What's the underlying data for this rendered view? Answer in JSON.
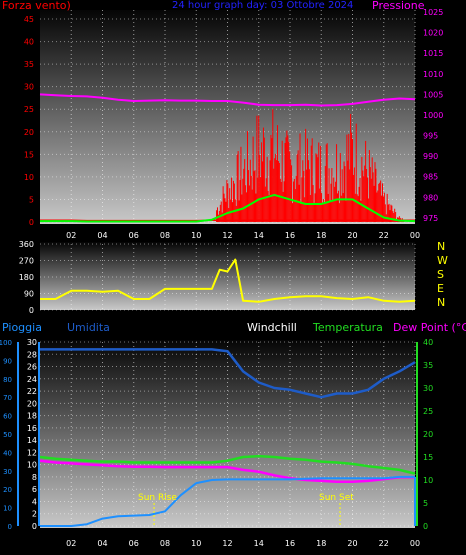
{
  "colors": {
    "wind": "#ff0000",
    "gust": "#00ff00",
    "pressure": "#ff00ff",
    "direction": "#ffff00",
    "humidity": "#1e5cc8",
    "temperature": "#22dd22",
    "dewpoint": "#ff00ff",
    "windchill": "#ffffff",
    "rain": "#1e90ff"
  },
  "chart_data": [
    {
      "type": "line",
      "title": "24 hour graph day: 03 Ottobre 2024",
      "left_label": "Forza vento)",
      "right_label": "Pressione",
      "x_ticks": [
        "02",
        "04",
        "06",
        "08",
        "10",
        "12",
        "14",
        "16",
        "18",
        "20",
        "22",
        "00"
      ],
      "x": [
        0,
        1,
        2,
        3,
        4,
        5,
        6,
        7,
        8,
        9,
        10,
        11,
        12,
        13,
        14,
        15,
        16,
        17,
        18,
        19,
        20,
        21,
        22,
        23,
        24
      ],
      "left_ticks": [
        "0",
        "5",
        "10",
        "15",
        "20",
        "25",
        "30",
        "35",
        "40",
        "45"
      ],
      "left_ylim": [
        0,
        47
      ],
      "right_ticks": [
        "975",
        "980",
        "985",
        "990",
        "995",
        "1000",
        "1005",
        "1010",
        "1015",
        "1020",
        "1025"
      ],
      "right_ylim": [
        974,
        1025.5
      ],
      "series": [
        {
          "name": "Pressione",
          "color_key": "pressure",
          "values": [
            1005.0,
            1004.8,
            1004.6,
            1004.5,
            1004.2,
            1003.7,
            1003.4,
            1003.5,
            1003.6,
            1003.5,
            1003.5,
            1003.4,
            1003.4,
            1003.0,
            1002.5,
            1002.4,
            1002.4,
            1002.5,
            1002.3,
            1002.4,
            1002.7,
            1003.2,
            1003.7,
            1004.0,
            1003.8
          ]
        },
        {
          "name": "Vento",
          "color_key": "wind",
          "values": [
            0.4,
            0.4,
            0.4,
            0.3,
            0.3,
            0.3,
            0.3,
            0.3,
            0.3,
            0.3,
            0.3,
            1,
            9,
            14,
            20,
            20,
            15,
            16,
            15,
            16,
            20,
            14,
            6,
            1,
            0.5
          ]
        },
        {
          "name": "Raffica",
          "color_key": "gust",
          "values": [
            0.2,
            0.2,
            0.2,
            0.1,
            0.1,
            0.1,
            0.1,
            0.1,
            0.1,
            0.1,
            0.1,
            0.5,
            2,
            3,
            5,
            6,
            5,
            4,
            4,
            5,
            5,
            3,
            1,
            0.3,
            0.2
          ]
        }
      ]
    },
    {
      "type": "line",
      "right_labels": [
        "N",
        "W",
        "S",
        "E",
        "N"
      ],
      "left_ticks": [
        "0",
        "90",
        "180",
        "270",
        "360"
      ],
      "ylim": [
        0,
        360
      ],
      "x": [
        0,
        1,
        2,
        3,
        4,
        5,
        6,
        7,
        8,
        9,
        10,
        11,
        11.5,
        12,
        12.5,
        13,
        14,
        15,
        16,
        17,
        18,
        19,
        20,
        21,
        22,
        23,
        24
      ],
      "series": [
        {
          "name": "Direzione",
          "color_key": "direction",
          "values": [
            60,
            60,
            105,
            105,
            100,
            105,
            60,
            60,
            115,
            115,
            115,
            115,
            220,
            210,
            275,
            50,
            45,
            60,
            70,
            75,
            75,
            65,
            60,
            70,
            50,
            45,
            50
          ]
        }
      ]
    },
    {
      "type": "line",
      "legend": [
        "Pioggia",
        "Umidita",
        "Windchill",
        "Temperatura",
        "Dew Point (°C)"
      ],
      "left_ticks_pct": [
        "0",
        "10",
        "20",
        "30",
        "40",
        "50",
        "60",
        "70",
        "80",
        "90",
        "100"
      ],
      "left_ticks_rain": [
        "0",
        "2",
        "4",
        "6",
        "8",
        "10",
        "12",
        "14",
        "16",
        "18",
        "20",
        "22",
        "24",
        "26",
        "28",
        "30"
      ],
      "right_ticks": [
        "0",
        "5",
        "10",
        "15",
        "20",
        "25",
        "30",
        "35",
        "40"
      ],
      "left_ylim": [
        0,
        30
      ],
      "right_ylim": [
        0,
        40
      ],
      "x": [
        0,
        1,
        2,
        3,
        4,
        5,
        6,
        7,
        8,
        9,
        10,
        11,
        12,
        13,
        14,
        15,
        16,
        17,
        18,
        19,
        20,
        21,
        22,
        23,
        24
      ],
      "sun_rise_hour": 7.3,
      "sun_set_hour": 19.2,
      "sun_rise_label": "Sun Rise",
      "sun_set_label": "Sun Set",
      "series": [
        {
          "name": "Umidita",
          "color_key": "humidity",
          "values": [
            96,
            96,
            96,
            96,
            96,
            96,
            96,
            96,
            96,
            96,
            96,
            96,
            95,
            84,
            78,
            75,
            74,
            72,
            70,
            72,
            72,
            74,
            80,
            84,
            89
          ]
        },
        {
          "name": "Temperatura",
          "color_key": "temperature",
          "values": [
            15.0,
            14.6,
            14.4,
            14.2,
            14.0,
            14.0,
            13.8,
            13.8,
            13.8,
            13.8,
            13.8,
            13.8,
            14.2,
            15.0,
            15.2,
            15.0,
            14.6,
            14.4,
            14.0,
            13.8,
            13.5,
            13.0,
            12.6,
            12.2,
            11.4
          ]
        },
        {
          "name": "Dew Point (°C)",
          "color_key": "dewpoint",
          "values": [
            14.2,
            13.8,
            13.6,
            13.4,
            13.2,
            13.0,
            12.9,
            12.9,
            12.8,
            12.8,
            12.8,
            12.8,
            12.8,
            12.2,
            11.8,
            11.0,
            10.4,
            10.0,
            9.8,
            9.6,
            9.6,
            9.8,
            10.2,
            10.6,
            10.6
          ]
        },
        {
          "name": "Pioggia",
          "color_key": "rain",
          "values": [
            0,
            0,
            0,
            0.3,
            1.2,
            1.6,
            1.7,
            1.8,
            2.4,
            5,
            7,
            7.5,
            7.6,
            7.6,
            7.6,
            7.6,
            7.6,
            7.7,
            7.8,
            7.8,
            7.8,
            7.8,
            7.8,
            8,
            8
          ]
        }
      ]
    }
  ]
}
